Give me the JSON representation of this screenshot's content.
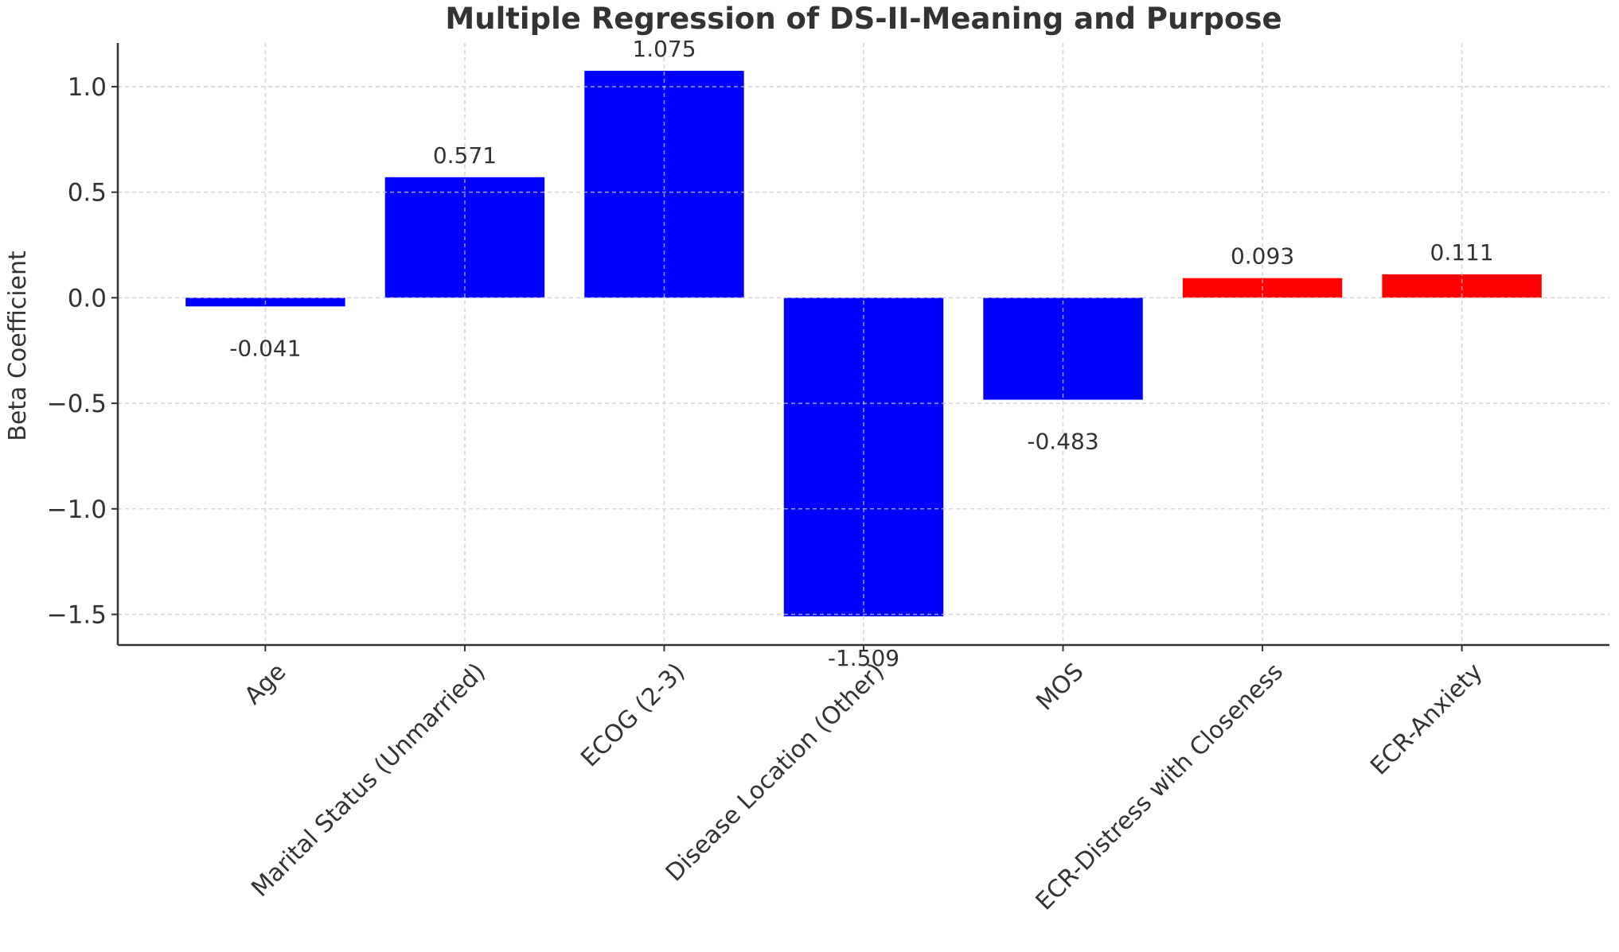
{
  "chart_data": {
    "type": "bar",
    "title": "Multiple Regression of DS-II-Meaning and Purpose",
    "xlabel": "",
    "ylabel": "Beta Coefficient",
    "categories": [
      "Age",
      "Marital Status (Unmarried)",
      "ECOG (2-3)",
      "Disease Location (Other)",
      "MOS",
      "ECR-Distress with Closeness",
      "ECR-Anxiety"
    ],
    "values": [
      -0.041,
      0.571,
      1.075,
      -1.509,
      -0.483,
      0.093,
      0.111
    ],
    "value_labels": [
      "-0.041",
      "0.571",
      "1.075",
      "-1.509",
      "-0.483",
      "0.093",
      "0.111"
    ],
    "bar_colors": [
      "#0000ff",
      "#0000ff",
      "#0000ff",
      "#0000ff",
      "#0000ff",
      "#ff0000",
      "#ff0000"
    ],
    "ylim": [
      -1.645,
      1.207
    ],
    "yticks": [
      -1.5,
      -1.0,
      -0.5,
      0.0,
      0.5,
      1.0
    ],
    "ytick_labels": [
      "−1.5",
      "−1.0",
      "−0.5",
      "0.0",
      "0.5",
      "1.0"
    ],
    "grid": true,
    "legend": "none"
  }
}
